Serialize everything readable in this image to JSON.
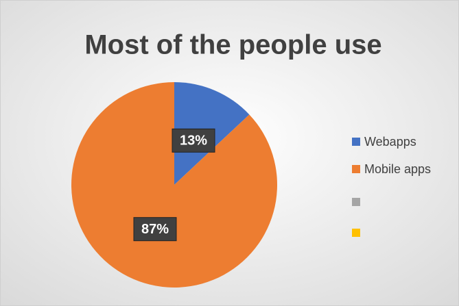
{
  "chart_data": {
    "type": "pie",
    "title": "Most of the people use",
    "categories": [
      "Webapps",
      "Mobile apps",
      null,
      null
    ],
    "values": [
      13,
      87,
      null,
      null
    ],
    "value_labels": [
      "13%",
      "87%",
      null,
      null
    ],
    "colors": [
      "#4472c4",
      "#ed7d31",
      "#a5a5a5",
      "#ffc000"
    ],
    "legend": "right"
  }
}
